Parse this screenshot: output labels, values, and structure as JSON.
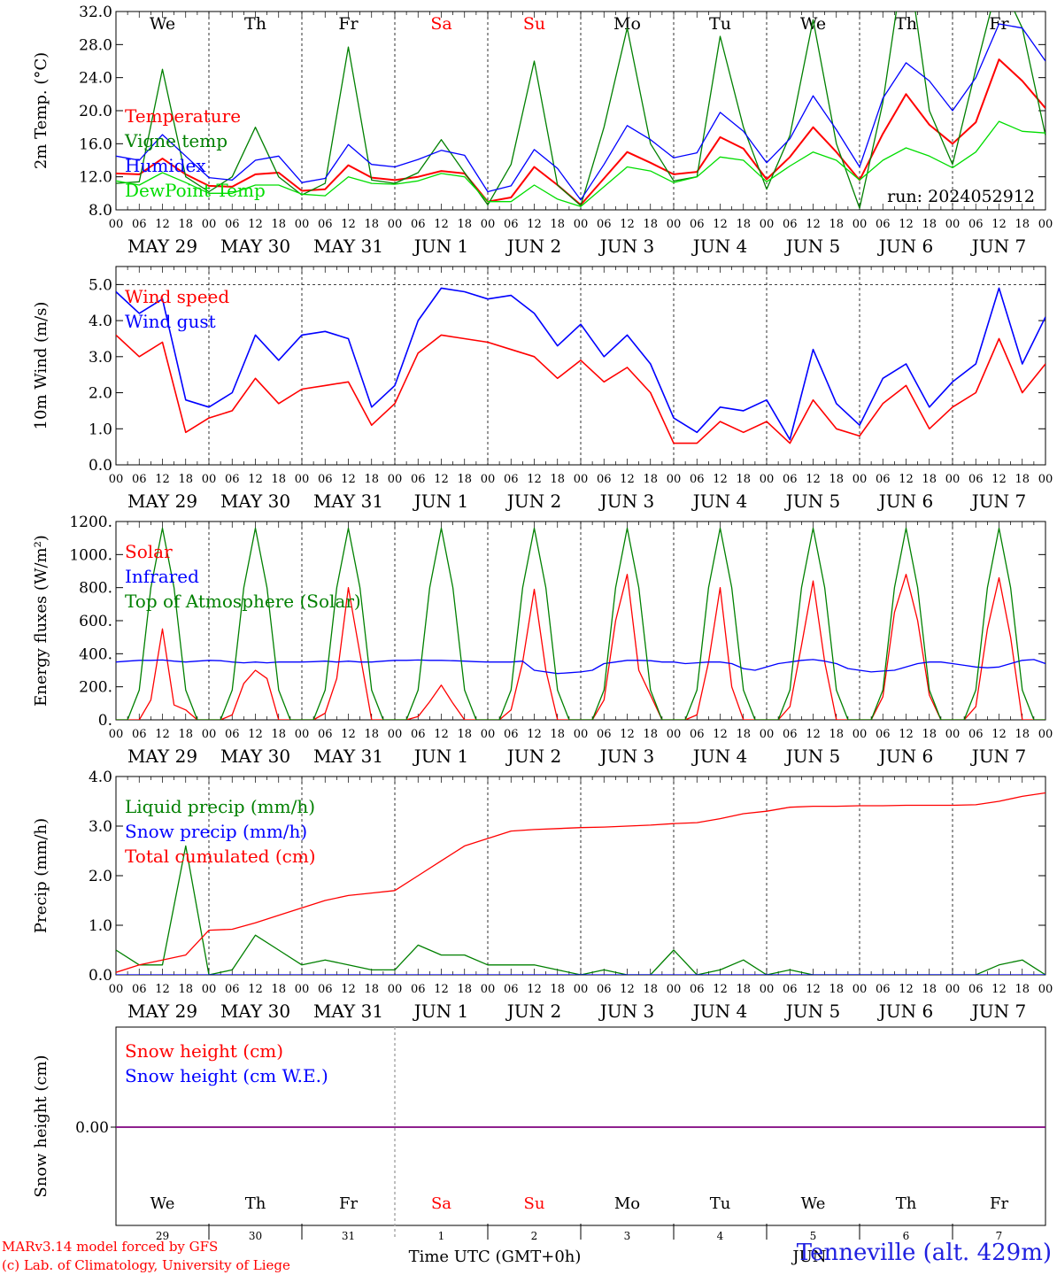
{
  "labels": {
    "day_abbrev": [
      "We",
      "Th",
      "Fr",
      "Sa",
      "Su",
      "Mo",
      "Tu",
      "We",
      "Th",
      "Fr"
    ],
    "hour_ticks": [
      "00",
      "06",
      "12",
      "18"
    ],
    "date_labels": [
      "MAY 29",
      "MAY 30",
      "MAY 31",
      "JUN  1",
      "JUN  2",
      "JUN  3",
      "JUN  4",
      "JUN  5",
      "JUN  6",
      "JUN  7"
    ],
    "snow_day_numbers": [
      "29",
      "30",
      "31",
      "1",
      "2",
      "3",
      "4",
      "5",
      "6",
      "7"
    ],
    "month_tag": "JUN",
    "time_axis_title": "Time UTC (GMT+0h)",
    "run_label": "run: 2024052912",
    "model_credit": "MARv3.14 model forced by GFS",
    "lab_credit": "(c) Lab. of Climatology, University of Liege",
    "station": "Tenneville (alt. 429m)"
  },
  "colors": {
    "red": "#ff0000",
    "green": "#008000",
    "blue": "#0000ff",
    "lightgreen": "#00dd00",
    "purple": "#7f007f",
    "weekend_day": "#ff0000"
  },
  "chart_data": [
    {
      "type": "line",
      "ylabel": "2m Temp. (°C)",
      "ylim": [
        8,
        32
      ],
      "yticks": [
        "8.0",
        "12.0",
        "16.0",
        "20.0",
        "24.0",
        "28.0",
        "32.0"
      ],
      "x_unit": "hours since May 29 00 UTC",
      "x": [
        0,
        6,
        12,
        18,
        24,
        30,
        36,
        42,
        48,
        54,
        60,
        66,
        72,
        78,
        84,
        90,
        96,
        102,
        108,
        114,
        120,
        126,
        132,
        138,
        144,
        150,
        156,
        162,
        168,
        174,
        180,
        186,
        192,
        198,
        204,
        210,
        216,
        222,
        228,
        234,
        240
      ],
      "legend": "left",
      "series": [
        {
          "name": "Temperature",
          "color": "red",
          "values": [
            12.4,
            12.3,
            14.2,
            12.3,
            10.9,
            10.8,
            12.3,
            12.5,
            10.3,
            10.5,
            13.4,
            11.9,
            11.6,
            12.0,
            12.7,
            12.4,
            9.0,
            9.5,
            13.2,
            11.0,
            8.6,
            11.8,
            15.0,
            13.7,
            12.3,
            12.6,
            16.8,
            15.4,
            11.7,
            14.4,
            18.0,
            15.0,
            11.6,
            17.2,
            22.0,
            18.3,
            16.0,
            18.6,
            26.2,
            23.6,
            20.3
          ]
        },
        {
          "name": "Vigne temp",
          "color": "green",
          "values": [
            11.2,
            11.4,
            25.0,
            12.0,
            10.2,
            12.0,
            18.0,
            12.0,
            9.8,
            11.2,
            27.7,
            11.6,
            11.2,
            12.5,
            16.5,
            12.5,
            8.6,
            13.5,
            26.0,
            11.0,
            8.5,
            18.0,
            30.0,
            16.0,
            11.5,
            12.0,
            29.0,
            18.0,
            10.5,
            17.0,
            31.0,
            16.0,
            8.2,
            21.0,
            40.0,
            20.0,
            13.5,
            25.0,
            36.0,
            30.0,
            17.0
          ]
        },
        {
          "name": "Humidex",
          "color": "blue",
          "values": [
            14.5,
            14.0,
            17.1,
            14.5,
            11.9,
            11.6,
            14.0,
            14.5,
            11.3,
            11.8,
            15.9,
            13.5,
            13.2,
            14.1,
            15.2,
            14.6,
            10.2,
            10.9,
            15.3,
            13.0,
            9.2,
            13.5,
            18.2,
            16.5,
            14.3,
            14.9,
            19.8,
            17.5,
            13.7,
            16.6,
            21.8,
            17.7,
            13.2,
            21.5,
            25.8,
            23.6,
            20.0,
            24.0,
            30.5,
            30.0,
            26.0
          ]
        },
        {
          "name": "DewPoint Temp",
          "color": "lightgreen",
          "values": [
            11.5,
            11.0,
            12.5,
            11.3,
            10.0,
            10.0,
            11.0,
            11.0,
            9.9,
            9.7,
            12.0,
            11.2,
            11.1,
            11.5,
            12.4,
            12.0,
            9.0,
            9.0,
            11.0,
            9.3,
            8.4,
            10.8,
            13.2,
            12.7,
            11.3,
            12.0,
            14.4,
            14.0,
            11.4,
            13.3,
            15.0,
            14.0,
            11.6,
            14.0,
            15.5,
            14.5,
            13.1,
            15.0,
            18.7,
            17.5,
            17.3
          ]
        }
      ]
    },
    {
      "type": "line",
      "ylabel": "10m Wind (m/s)",
      "ylim": [
        0,
        5.5
      ],
      "yticks": [
        "0.0",
        "1.0",
        "2.0",
        "3.0",
        "4.0",
        "5.0"
      ],
      "x_unit": "hours since May 29 00 UTC",
      "x": [
        0,
        6,
        12,
        18,
        24,
        30,
        36,
        42,
        48,
        54,
        60,
        66,
        72,
        78,
        84,
        90,
        96,
        102,
        108,
        114,
        120,
        126,
        132,
        138,
        144,
        150,
        156,
        162,
        168,
        174,
        180,
        186,
        192,
        198,
        204,
        210,
        216,
        222,
        228,
        234,
        240
      ],
      "legend": "left",
      "series": [
        {
          "name": "Wind speed",
          "color": "red",
          "values": [
            3.6,
            3.0,
            3.4,
            0.9,
            1.3,
            1.5,
            2.4,
            1.7,
            2.1,
            2.2,
            2.3,
            1.1,
            1.7,
            3.1,
            3.6,
            3.5,
            3.4,
            3.2,
            3.0,
            2.4,
            2.9,
            2.3,
            2.7,
            2.0,
            0.6,
            0.6,
            1.2,
            0.9,
            1.2,
            0.6,
            1.8,
            1.0,
            0.8,
            1.7,
            2.2,
            1.0,
            1.6,
            2.0,
            3.5,
            2.0,
            2.8
          ]
        },
        {
          "name": "Wind gust",
          "color": "blue",
          "values": [
            4.8,
            4.2,
            4.6,
            1.8,
            1.6,
            2.0,
            3.6,
            2.9,
            3.6,
            3.7,
            3.5,
            1.6,
            2.2,
            4.0,
            4.9,
            4.8,
            4.6,
            4.7,
            4.2,
            3.3,
            3.9,
            3.0,
            3.6,
            2.8,
            1.3,
            0.9,
            1.6,
            1.5,
            1.8,
            0.7,
            3.2,
            1.7,
            1.1,
            2.4,
            2.8,
            1.6,
            2.3,
            2.8,
            4.9,
            2.8,
            4.1
          ]
        }
      ]
    },
    {
      "type": "line",
      "ylabel": "Energy fluxes (W/m²)",
      "ylim": [
        0,
        1200
      ],
      "yticks": [
        "0.",
        "200.",
        "400.",
        "600.",
        "800.",
        "1000.",
        "1200."
      ],
      "x_unit": "hours since May 29 00 UTC",
      "x": [
        0,
        3,
        6,
        9,
        12,
        15,
        18,
        21,
        24,
        27,
        30,
        33,
        36,
        39,
        42,
        45,
        48,
        51,
        54,
        57,
        60,
        63,
        66,
        69,
        72,
        75,
        78,
        81,
        84,
        87,
        90,
        93,
        96,
        99,
        102,
        105,
        108,
        111,
        114,
        117,
        120,
        123,
        126,
        129,
        132,
        135,
        138,
        141,
        144,
        147,
        150,
        153,
        156,
        159,
        162,
        165,
        168,
        171,
        174,
        177,
        180,
        183,
        186,
        189,
        192,
        195,
        198,
        201,
        204,
        207,
        210,
        213,
        216,
        219,
        222,
        225,
        228,
        231,
        234,
        237,
        240
      ],
      "legend": "left",
      "series": [
        {
          "name": "Solar",
          "color": "red",
          "values": [
            0,
            0,
            0,
            120,
            550,
            90,
            60,
            0,
            0,
            0,
            30,
            220,
            300,
            250,
            0,
            0,
            0,
            0,
            40,
            250,
            800,
            400,
            0,
            0,
            0,
            0,
            20,
            110,
            210,
            100,
            0,
            0,
            0,
            0,
            60,
            350,
            790,
            300,
            0,
            0,
            0,
            0,
            120,
            600,
            880,
            300,
            150,
            0,
            0,
            0,
            30,
            350,
            800,
            200,
            0,
            0,
            0,
            0,
            80,
            450,
            840,
            350,
            0,
            0,
            0,
            0,
            140,
            650,
            880,
            600,
            150,
            0,
            0,
            0,
            80,
            550,
            860,
            500,
            0,
            0,
            0
          ]
        },
        {
          "name": "Infrared",
          "color": "blue",
          "values": [
            350,
            355,
            360,
            360,
            362,
            355,
            350,
            355,
            360,
            358,
            350,
            345,
            350,
            345,
            350,
            350,
            350,
            352,
            355,
            350,
            355,
            350,
            350,
            355,
            360,
            360,
            362,
            360,
            360,
            358,
            355,
            352,
            350,
            350,
            350,
            355,
            300,
            290,
            280,
            285,
            290,
            300,
            340,
            350,
            360,
            360,
            358,
            350,
            350,
            340,
            345,
            350,
            350,
            340,
            310,
            300,
            320,
            340,
            350,
            360,
            365,
            355,
            340,
            310,
            300,
            290,
            295,
            300,
            320,
            340,
            350,
            350,
            340,
            330,
            320,
            315,
            320,
            340,
            360,
            365,
            340
          ]
        },
        {
          "name": "Top of Atmosphere (Solar)",
          "color": "green",
          "values": [
            0,
            0,
            180,
            800,
            1160,
            800,
            180,
            0,
            0,
            0,
            180,
            800,
            1160,
            800,
            180,
            0,
            0,
            0,
            180,
            800,
            1160,
            800,
            180,
            0,
            0,
            0,
            180,
            800,
            1160,
            800,
            180,
            0,
            0,
            0,
            180,
            800,
            1160,
            800,
            180,
            0,
            0,
            0,
            180,
            800,
            1160,
            800,
            180,
            0,
            0,
            0,
            180,
            800,
            1160,
            800,
            180,
            0,
            0,
            0,
            180,
            800,
            1160,
            800,
            180,
            0,
            0,
            0,
            180,
            800,
            1160,
            800,
            180,
            0,
            0,
            0,
            180,
            800,
            1160,
            800,
            180,
            0,
            0
          ]
        }
      ]
    },
    {
      "type": "line",
      "ylabel": "Precip (mm/h)",
      "ylim": [
        0,
        4
      ],
      "yticks": [
        "0.0",
        "1.0",
        "2.0",
        "3.0",
        "4.0"
      ],
      "x_unit": "hours since May 29 00 UTC",
      "x": [
        0,
        6,
        12,
        18,
        24,
        30,
        36,
        42,
        48,
        54,
        60,
        66,
        72,
        78,
        84,
        90,
        96,
        102,
        108,
        114,
        120,
        126,
        132,
        138,
        144,
        150,
        156,
        162,
        168,
        174,
        180,
        186,
        192,
        198,
        204,
        210,
        216,
        222,
        228,
        234,
        240
      ],
      "legend": "left",
      "series": [
        {
          "name": "Liquid precip (mm/h)",
          "color": "green",
          "values": [
            0.5,
            0.2,
            0.2,
            2.6,
            0.0,
            0.1,
            0.8,
            0.5,
            0.2,
            0.3,
            0.2,
            0.1,
            0.1,
            0.6,
            0.4,
            0.4,
            0.2,
            0.2,
            0.2,
            0.1,
            0.0,
            0.1,
            0.0,
            0.0,
            0.5,
            0.0,
            0.1,
            0.3,
            0.0,
            0.1,
            0.0,
            0.0,
            0.0,
            0.0,
            0.0,
            0.0,
            0.0,
            0.0,
            0.2,
            0.3,
            0.0
          ]
        },
        {
          "name": "Snow precip (mm/h)",
          "color": "blue",
          "values": [
            0,
            0,
            0,
            0,
            0,
            0,
            0,
            0,
            0,
            0,
            0,
            0,
            0,
            0,
            0,
            0,
            0,
            0,
            0,
            0,
            0,
            0,
            0,
            0,
            0,
            0,
            0,
            0,
            0,
            0,
            0,
            0,
            0,
            0,
            0,
            0,
            0,
            0,
            0,
            0,
            0
          ]
        },
        {
          "name": "Total cumulated (cm)",
          "color": "red",
          "values": [
            0.05,
            0.2,
            0.3,
            0.4,
            0.9,
            0.92,
            1.05,
            1.2,
            1.35,
            1.5,
            1.6,
            1.65,
            1.7,
            2.0,
            2.3,
            2.6,
            2.75,
            2.9,
            2.93,
            2.95,
            2.97,
            2.98,
            3.0,
            3.02,
            3.05,
            3.07,
            3.15,
            3.25,
            3.3,
            3.38,
            3.4,
            3.4,
            3.41,
            3.41,
            3.42,
            3.42,
            3.42,
            3.43,
            3.5,
            3.6,
            3.67
          ]
        }
      ]
    },
    {
      "type": "line",
      "ylabel": "Snow height (cm)",
      "yticks": [
        "0.00"
      ],
      "x_unit": "hours since May 29 00 UTC",
      "x": [
        0,
        240
      ],
      "legend": "left",
      "series": [
        {
          "name": "Snow height (cm)",
          "color": "red",
          "values": [
            0,
            0
          ]
        },
        {
          "name": "Snow height (cm W.E.)",
          "color": "blue",
          "values": [
            0,
            0
          ]
        }
      ]
    }
  ]
}
